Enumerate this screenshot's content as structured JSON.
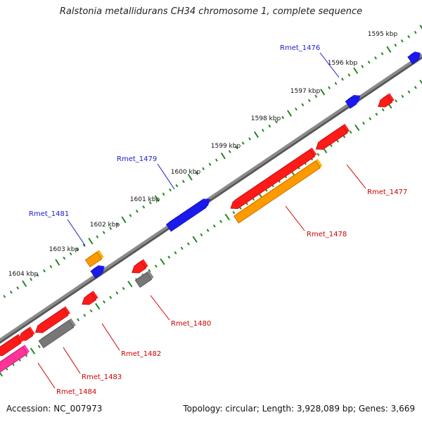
{
  "title": "Ralstonia metallidurans CH34 chromosome 1, complete sequence",
  "footer": {
    "accession": "Accession: NC_007973",
    "summary": "Topology: circular; Length: 3,928,089 bp; Genes: 3,669"
  },
  "colors": {
    "backbone": "#8a8a8a",
    "tick": "#228822",
    "label_forward": "#1a1acc",
    "label_reverse": "#cc0000",
    "feature_red": "#ff1a1a",
    "feature_blue": "#1a1aee",
    "feature_orange": "#ff9900",
    "feature_gray": "#777777",
    "feature_pink": "#ff3399"
  },
  "position_ruler": {
    "unit": "kbp",
    "labels": [
      "1595 kbp",
      "1596 kbp",
      "1597 kbp",
      "1598 kbp",
      "1599 kbp",
      "1600 kbp",
      "1601 kbp",
      "1602 kbp",
      "1603 kbp",
      "1604 kbp"
    ]
  },
  "gene_labels": [
    {
      "text": "Rmet_1476",
      "strand": "forward"
    },
    {
      "text": "Rmet_1477",
      "strand": "reverse"
    },
    {
      "text": "Rmet_1478",
      "strand": "reverse"
    },
    {
      "text": "Rmet_1479",
      "strand": "forward"
    },
    {
      "text": "Rmet_1480",
      "strand": "reverse"
    },
    {
      "text": "Rmet_1481",
      "strand": "forward"
    },
    {
      "text": "Rmet_1482",
      "strand": "reverse"
    },
    {
      "text": "Rmet_1483",
      "strand": "reverse"
    },
    {
      "text": "Rmet_1484",
      "strand": "reverse"
    }
  ],
  "features": [
    {
      "color": "blue",
      "strand": "forward",
      "kind": "arrow"
    },
    {
      "color": "blue",
      "strand": "forward",
      "kind": "arrow"
    },
    {
      "color": "blue",
      "strand": "forward",
      "kind": "arrow"
    },
    {
      "color": "blue",
      "strand": "forward",
      "kind": "arrow"
    },
    {
      "color": "orange",
      "strand": "forward",
      "kind": "box"
    },
    {
      "color": "red",
      "strand": "reverse",
      "kind": "arrow"
    },
    {
      "color": "red",
      "strand": "reverse",
      "kind": "arrow"
    },
    {
      "color": "red",
      "strand": "reverse",
      "kind": "arrow"
    },
    {
      "color": "orange",
      "strand": "reverse",
      "kind": "box"
    },
    {
      "color": "red",
      "strand": "reverse",
      "kind": "arrow"
    },
    {
      "color": "gray",
      "strand": "reverse",
      "kind": "box"
    },
    {
      "color": "red",
      "strand": "reverse",
      "kind": "arrow"
    },
    {
      "color": "red",
      "strand": "reverse",
      "kind": "arrow"
    },
    {
      "color": "red",
      "strand": "reverse",
      "kind": "arrow"
    },
    {
      "color": "gray",
      "strand": "reverse",
      "kind": "box"
    },
    {
      "color": "red",
      "strand": "reverse",
      "kind": "arrow"
    },
    {
      "color": "pink",
      "strand": "reverse",
      "kind": "box"
    }
  ]
}
